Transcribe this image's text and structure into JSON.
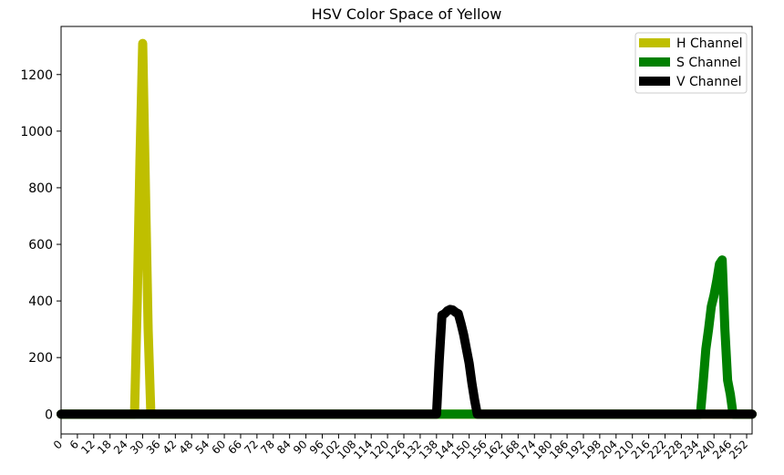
{
  "chart_data": {
    "type": "line",
    "title": "HSV Color Space of Yellow",
    "xlabel": "",
    "ylabel": "",
    "xlim": [
      0,
      254
    ],
    "ylim": [
      -70,
      1370
    ],
    "x_ticks": [
      0,
      6,
      12,
      18,
      24,
      30,
      36,
      42,
      48,
      54,
      60,
      66,
      72,
      78,
      84,
      90,
      96,
      102,
      108,
      114,
      120,
      126,
      132,
      138,
      144,
      150,
      156,
      162,
      168,
      174,
      180,
      186,
      192,
      198,
      204,
      210,
      216,
      222,
      228,
      234,
      240,
      246,
      252
    ],
    "y_ticks": [
      0,
      200,
      400,
      600,
      800,
      1000,
      1200
    ],
    "grid": false,
    "legend_position": "top-right",
    "series": [
      {
        "name": "H Channel",
        "color": "#bfbf00",
        "points": [
          [
            0,
            0
          ],
          [
            26,
            0
          ],
          [
            27,
            0
          ],
          [
            28,
            400
          ],
          [
            29,
            900
          ],
          [
            30,
            1310
          ],
          [
            31,
            800
          ],
          [
            32,
            300
          ],
          [
            33,
            0
          ],
          [
            34,
            0
          ],
          [
            254,
            0
          ]
        ]
      },
      {
        "name": "S Channel",
        "color": "#008000",
        "points": [
          [
            0,
            0
          ],
          [
            234,
            0
          ],
          [
            235,
            0
          ],
          [
            236,
            110
          ],
          [
            237,
            230
          ],
          [
            238,
            300
          ],
          [
            239,
            380
          ],
          [
            240,
            420
          ],
          [
            241,
            470
          ],
          [
            242,
            530
          ],
          [
            243,
            545
          ],
          [
            244,
            300
          ],
          [
            245,
            120
          ],
          [
            246,
            70
          ],
          [
            247,
            0
          ],
          [
            248,
            0
          ],
          [
            254,
            0
          ]
        ]
      },
      {
        "name": "V Channel",
        "color": "#000000",
        "points": [
          [
            0,
            0
          ],
          [
            137,
            0
          ],
          [
            138,
            0
          ],
          [
            139,
            190
          ],
          [
            140,
            350
          ],
          [
            141,
            355
          ],
          [
            142,
            365
          ],
          [
            143,
            370
          ],
          [
            144,
            368
          ],
          [
            145,
            360
          ],
          [
            146,
            355
          ],
          [
            147,
            320
          ],
          [
            148,
            280
          ],
          [
            149,
            230
          ],
          [
            150,
            180
          ],
          [
            151,
            110
          ],
          [
            152,
            50
          ],
          [
            153,
            0
          ],
          [
            154,
            0
          ],
          [
            254,
            0
          ]
        ]
      }
    ]
  }
}
